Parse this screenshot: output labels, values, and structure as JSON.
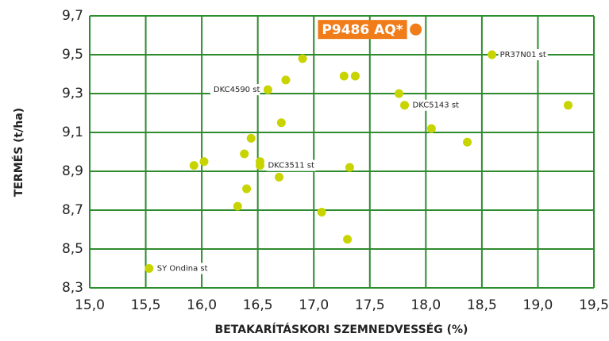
{
  "chart_data": {
    "type": "scatter",
    "xlabel": "BETAKARÍTÁSKORI SZEMNEDVESSÉG (%)",
    "ylabel": "TERMÉS (t/ha)",
    "xlim": [
      15.0,
      19.5
    ],
    "ylim": [
      8.3,
      9.7
    ],
    "xticks": [
      {
        "value": 15.0,
        "label": "15,0"
      },
      {
        "value": 15.5,
        "label": "15,5"
      },
      {
        "value": 16.0,
        "label": "16,0"
      },
      {
        "value": 16.5,
        "label": "16,5"
      },
      {
        "value": 17.0,
        "label": "17,0"
      },
      {
        "value": 17.5,
        "label": "17,5"
      },
      {
        "value": 18.0,
        "label": "18,0"
      },
      {
        "value": 18.5,
        "label": "18,5"
      },
      {
        "value": 19.0,
        "label": "19,0"
      },
      {
        "value": 19.5,
        "label": "19,5"
      }
    ],
    "yticks": [
      {
        "value": 8.3,
        "label": "8,3"
      },
      {
        "value": 8.5,
        "label": "8,5"
      },
      {
        "value": 8.7,
        "label": "8,7"
      },
      {
        "value": 8.9,
        "label": "8,9"
      },
      {
        "value": 9.1,
        "label": "9,1"
      },
      {
        "value": 9.3,
        "label": "9,3"
      },
      {
        "value": 9.5,
        "label": "9,5"
      },
      {
        "value": 9.7,
        "label": "9,7"
      }
    ],
    "grid": true,
    "grid_color": "#2e8b2e",
    "series": [
      {
        "color": "#f07d1a",
        "x": [
          17.91
        ],
        "values": [
          9.63
        ],
        "labels": [
          "P9486 AQ*"
        ]
      },
      {
        "color": "#c8d400",
        "x": [
          18.59,
          16.9,
          16.75,
          16.59,
          17.27,
          17.37,
          17.76,
          17.81,
          19.27,
          16.71,
          18.05,
          18.37,
          16.44,
          16.38,
          16.52,
          16.52,
          16.02,
          15.93,
          17.32,
          16.69,
          16.4,
          16.32,
          17.07,
          17.3,
          15.53
        ],
        "values": [
          9.5,
          9.48,
          9.37,
          9.32,
          9.39,
          9.39,
          9.3,
          9.24,
          9.24,
          9.15,
          9.12,
          9.05,
          9.07,
          8.99,
          8.95,
          8.93,
          8.95,
          8.93,
          8.92,
          8.87,
          8.81,
          8.72,
          8.69,
          8.55,
          8.4
        ],
        "labels": [
          "PR37N01 st",
          null,
          null,
          "DKC4590 st",
          null,
          null,
          null,
          "DKC5143 st",
          null,
          null,
          null,
          null,
          null,
          null,
          null,
          "DKC3511 st",
          null,
          null,
          null,
          null,
          null,
          null,
          null,
          null,
          "SY Ondina st"
        ]
      }
    ]
  }
}
